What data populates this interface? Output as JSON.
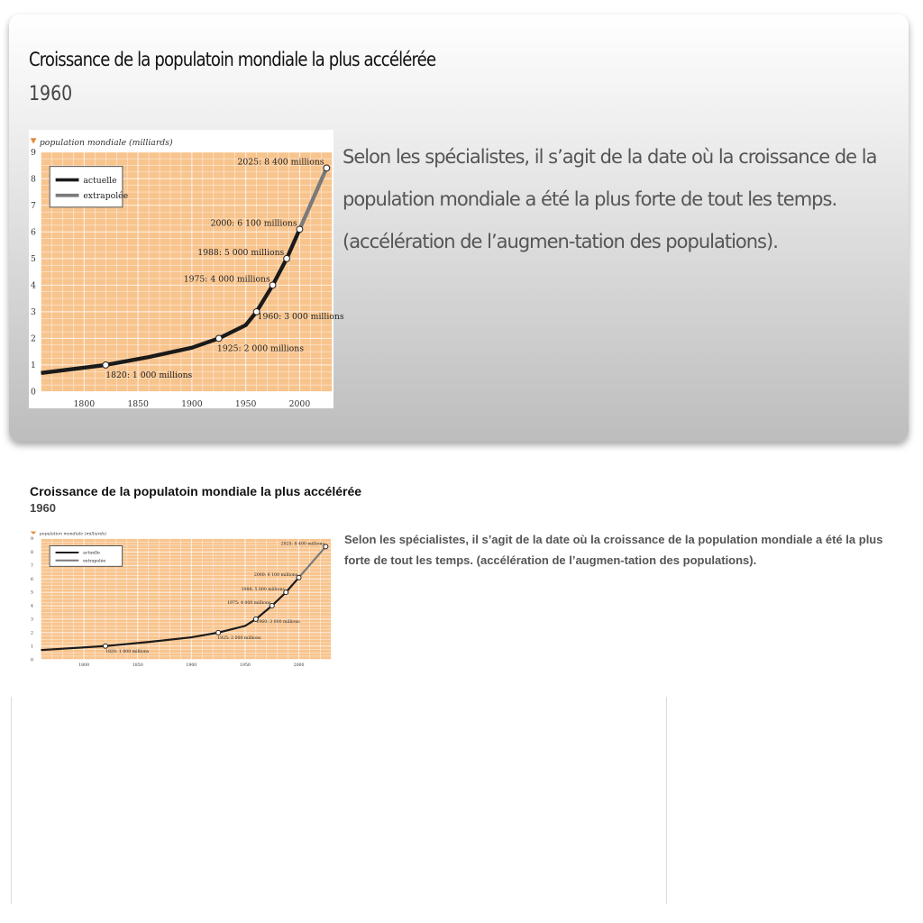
{
  "card": {
    "title": "Croissance de la populatoin mondiale la plus accélérée",
    "subtitle": "1960",
    "description": "Selon les spécialistes, il s’agit de la date où la croissance de la population mondiale a été la plus forte de tout les temps. (accélération de l’augmen-tation des populations)."
  },
  "thumbnail": {
    "title": "Croissance de la populatoin mondiale la plus accélérée",
    "subtitle": "1960",
    "description": "Selon les spécialistes, il s’agit de la date où la croissance de la population mondiale a été la plus forte de tout les temps. (accélération de l’augmen-tation des populations)."
  },
  "colors": {
    "plot_bg": "#f8c48e",
    "grid": "#ffffff",
    "actual_line": "#1a1a1a",
    "extrapolated_line": "#7a7a7a",
    "marker": "#e08a3a"
  },
  "chart_data": {
    "type": "line",
    "title": "",
    "ylabel": "population mondiale (milliards)",
    "xlabel": "",
    "xlim": [
      1760,
      2030
    ],
    "ylim": [
      0,
      9
    ],
    "x_ticks": [
      1800,
      1850,
      1900,
      1950,
      2000
    ],
    "y_ticks": [
      0,
      1,
      2,
      3,
      4,
      5,
      6,
      7,
      8,
      9
    ],
    "legend": {
      "placement": "top-left",
      "entries": [
        "actuelle",
        "extrapolée"
      ]
    },
    "series": [
      {
        "name": "actuelle",
        "x": [
          1760,
          1820,
          1860,
          1900,
          1925,
          1950,
          1960,
          1975,
          1988,
          2000
        ],
        "y": [
          0.7,
          1.0,
          1.3,
          1.65,
          2.0,
          2.5,
          3.0,
          4.0,
          5.0,
          6.1
        ]
      },
      {
        "name": "extrapolée",
        "x": [
          2000,
          2025
        ],
        "y": [
          6.1,
          8.4
        ]
      }
    ],
    "points": [
      {
        "x": 1820,
        "y": 1.0,
        "label": "1820: 1 000 millions"
      },
      {
        "x": 1925,
        "y": 2.0,
        "label": "1925: 2 000 millions"
      },
      {
        "x": 1960,
        "y": 3.0,
        "label": "1960: 3 000 millions"
      },
      {
        "x": 1975,
        "y": 4.0,
        "label": "1975: 4 000 millions"
      },
      {
        "x": 1988,
        "y": 5.0,
        "label": "1988: 5 000 millions"
      },
      {
        "x": 2000,
        "y": 6.1,
        "label": "2000: 6 100 millions"
      },
      {
        "x": 2025,
        "y": 8.4,
        "label": "2025: 8 400 millions"
      }
    ]
  }
}
